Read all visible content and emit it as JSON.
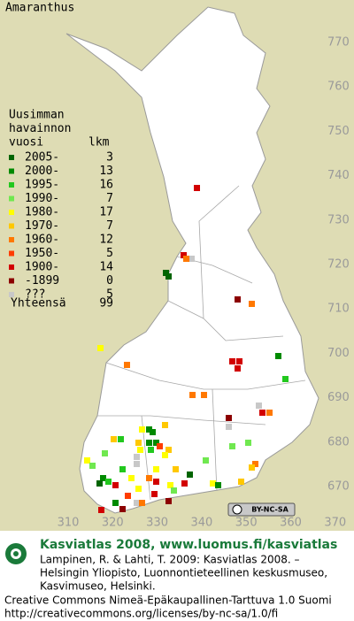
{
  "title": "Amaranthus",
  "legend": {
    "heading": [
      "Uusimman",
      "havainnon",
      "vuosi"
    ],
    "count_heading": "lkm",
    "rows": [
      {
        "label": "2005-",
        "count": 3,
        "color": "#006400"
      },
      {
        "label": "2000-",
        "count": 13,
        "color": "#008a00"
      },
      {
        "label": "1995-",
        "count": 16,
        "color": "#22c81e"
      },
      {
        "label": "1990-",
        "count": 7,
        "color": "#70e850"
      },
      {
        "label": "1980-",
        "count": 17,
        "color": "#ffff00"
      },
      {
        "label": "1970-",
        "count": 7,
        "color": "#ffc800"
      },
      {
        "label": "1960-",
        "count": 12,
        "color": "#ff7800"
      },
      {
        "label": "1950-",
        "count": 5,
        "color": "#ff3c00"
      },
      {
        "label": "1900-",
        "count": 14,
        "color": "#d20000"
      },
      {
        "label": "-1899",
        "count": 0,
        "color": "#8c0000"
      },
      {
        "label": "???",
        "count": 5,
        "color": "#c8c8c8"
      }
    ],
    "total_label": "Yhteensä",
    "total": 99
  },
  "northing_labels": [
    770,
    760,
    750,
    740,
    730,
    720,
    710,
    700,
    690,
    680,
    670
  ],
  "easting_labels": [
    310,
    320,
    330,
    340,
    350,
    360,
    370
  ],
  "license_badge": "BY-NC-SA",
  "footer": {
    "heading": "Kasviatlas 2008, www.luomus.fi/kasviatlas",
    "citation": [
      "Lampinen, R. & Lahti, T. 2009: Kasviatlas 2008. –",
      "Helsingin Yliopisto, Luonnontieteellinen keskusmuseo,",
      "Kasvimuseo, Helsinki."
    ],
    "license": [
      "Creative Commons Nimeä-Epäkaupallinen-Tarttuva 1.0 Suomi",
      "http://creativecommons.org/licenses/by-nc-sa/1.0/fi"
    ]
  }
}
